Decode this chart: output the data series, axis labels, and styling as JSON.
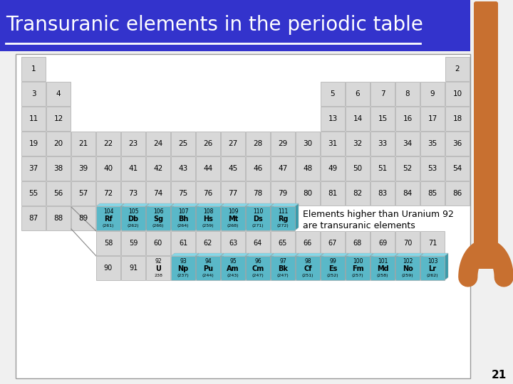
{
  "title": "Transuranic elements in the periodic table",
  "title_bg": "#3333cc",
  "title_color": "white",
  "subtitle_line1": "Elements higher than Uranium 92",
  "subtitle_line2": "are transuranic elements",
  "page_num": "21",
  "bg_color": "#f0f0f0",
  "cell_color_normal": "#d8d8d8",
  "cell_color_transuranic": "#5ab8c8",
  "cell_border": "#aaaaaa",
  "orange_bar_color": "#c87030",
  "trans_top_color": "#85d8e8",
  "trans_side_color": "#3a9aaa"
}
